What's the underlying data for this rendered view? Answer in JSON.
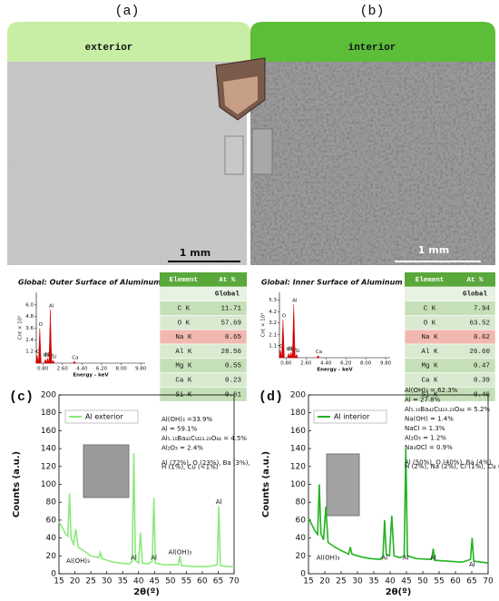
{
  "panels": [
    {
      "label": "(a)",
      "header": "exterior",
      "scale_bar": "1 mm"
    },
    {
      "label": "(b)",
      "header": "interior",
      "scale_bar": "1 mm"
    }
  ],
  "eds": [
    {
      "title": "Global: Outer Surface of Aluminum",
      "ylabel": "Cnt × 10³",
      "xlabel": "Energy - keV",
      "xlim": [
        0.2,
        10.2
      ],
      "ylim": [
        0,
        7.3
      ],
      "xticks": [
        {
          "value": 0.8,
          "label": "0.80"
        },
        {
          "value": 2.6,
          "label": "2.60"
        },
        {
          "value": 4.4,
          "label": "4.40"
        },
        {
          "value": 6.2,
          "label": "6.20"
        },
        {
          "value": 8.0,
          "label": "8.00"
        },
        {
          "value": 9.8,
          "label": "9.80"
        }
      ],
      "yticks": [
        {
          "value": 1.2,
          "label": "1.2"
        },
        {
          "value": 2.4,
          "label": "2.4"
        },
        {
          "value": 3.6,
          "label": "3.6"
        },
        {
          "value": 4.8,
          "label": "4.8"
        },
        {
          "value": 6.0,
          "label": "6.0"
        }
      ],
      "peaks": [
        {
          "label": "C",
          "x": 0.28,
          "value": 0.8
        },
        {
          "label": "O",
          "x": 0.52,
          "value": 3.6
        },
        {
          "label": "Na",
          "x": 1.04,
          "value": 0.4
        },
        {
          "label": "Mg",
          "x": 1.25,
          "value": 0.5
        },
        {
          "label": "Al",
          "x": 1.49,
          "value": 5.5
        },
        {
          "label": "Si",
          "x": 1.74,
          "value": 0.3
        },
        {
          "label": "Ca",
          "x": 3.69,
          "value": 0.2
        }
      ],
      "table": {
        "header": [
          "Element",
          "At %"
        ],
        "subheader": "Global",
        "rows": [
          [
            "C K",
            "11.71"
          ],
          [
            "O K",
            "57.69"
          ],
          [
            "Na K",
            "0.65"
          ],
          [
            "Al K",
            "28.56"
          ],
          [
            "Mg K",
            "0.55"
          ],
          [
            "Ca K",
            "0.23"
          ],
          [
            "Si K",
            "0.61"
          ]
        ]
      }
    },
    {
      "title": "Global: Inner Surface of Aluminum",
      "ylabel": "Cnt × 10³",
      "xlabel": "Energy - keV",
      "xlim": [
        0.2,
        10.2
      ],
      "ylim": [
        0,
        6.0
      ],
      "xticks": [
        {
          "value": 0.8,
          "label": "0.80"
        },
        {
          "value": 2.6,
          "label": "2.60"
        },
        {
          "value": 4.4,
          "label": "4.40"
        },
        {
          "value": 6.2,
          "label": "6.20"
        },
        {
          "value": 8.0,
          "label": "8.00"
        },
        {
          "value": 9.8,
          "label": "9.80"
        }
      ],
      "yticks": [
        {
          "value": 1.1,
          "label": "1.1"
        },
        {
          "value": 2.1,
          "label": "2.1"
        },
        {
          "value": 3.2,
          "label": "3.2"
        },
        {
          "value": 4.2,
          "label": "4.2"
        },
        {
          "value": 5.3,
          "label": "5.3"
        }
      ],
      "peaks": [
        {
          "label": "C",
          "x": 0.28,
          "value": 0.7
        },
        {
          "label": "O",
          "x": 0.52,
          "value": 3.5
        },
        {
          "label": "Na",
          "x": 1.04,
          "value": 0.4
        },
        {
          "label": "Mg",
          "x": 1.25,
          "value": 0.5
        },
        {
          "label": "Al",
          "x": 1.49,
          "value": 4.9
        },
        {
          "label": "Si",
          "x": 1.74,
          "value": 0.3
        },
        {
          "label": "Ca",
          "x": 3.69,
          "value": 0.2
        }
      ],
      "table": {
        "header": [
          "Element",
          "At %"
        ],
        "subheader": "Global",
        "rows": [
          [
            "C K",
            "7.94"
          ],
          [
            "O K",
            "63.52"
          ],
          [
            "Na K",
            "0.62"
          ],
          [
            "Al K",
            "26.60"
          ],
          [
            "Mg K",
            "0.47"
          ],
          [
            "Ca K",
            "0.39"
          ],
          [
            "Si K",
            "0.46"
          ]
        ]
      }
    }
  ],
  "chart_data": [
    {
      "type": "line",
      "label": "(c)",
      "xlabel": "2θ(º)",
      "ylabel": "Counts (a.u.)",
      "xlim": [
        15,
        70
      ],
      "ylim": [
        0,
        200
      ],
      "xticks": [
        15,
        20,
        25,
        30,
        35,
        40,
        45,
        50,
        55,
        60,
        65,
        70
      ],
      "yticks": [
        0,
        20,
        40,
        60,
        80,
        100,
        120,
        140,
        160,
        180,
        200
      ],
      "x": [
        15,
        16,
        17,
        17.8,
        18.3,
        18.8,
        19.6,
        20.3,
        21,
        23,
        25,
        27.5,
        28,
        28.5,
        31,
        34,
        37,
        38,
        38.5,
        39,
        40,
        40.6,
        41.2,
        43,
        44.3,
        44.8,
        45.3,
        48,
        52.5,
        53,
        53.5,
        58,
        62,
        64.7,
        65.2,
        65.7,
        68,
        70
      ],
      "series": [
        {
          "name": "Al exterior",
          "color": "#8cea7c",
          "values": [
            58,
            52,
            45,
            42,
            90,
            40,
            33,
            50,
            30,
            25,
            20,
            18,
            24,
            17,
            14,
            12,
            11,
            14,
            135,
            15,
            12,
            46,
            12,
            11,
            14,
            85,
            12,
            10,
            10,
            20,
            9,
            8,
            8,
            10,
            75,
            9,
            8,
            8
          ]
        }
      ],
      "annotations": [
        "Al(OH)₃ =33.9%",
        "Al = 59.1%",
        "Al₅.₁₀Ba₄₂Cu₂₃.₂₃O₈₄ = 4.5%",
        "Al₂O₃ = 2.4%",
        "Al (72%), O (23%), Ba (3%),",
        "H (1%), Cu (<1%)"
      ],
      "peak_labels": [
        {
          "text": "Al(OH)₃",
          "x": 21,
          "y": 14
        },
        {
          "text": "Al",
          "x": 38.5,
          "y": 18
        },
        {
          "text": "Al",
          "x": 44.8,
          "y": 18
        },
        {
          "text": "Al(OH)₃",
          "x": 53,
          "y": 24
        },
        {
          "text": "Al",
          "x": 65.2,
          "y": 80
        }
      ]
    },
    {
      "type": "line",
      "label": "(d)",
      "xlabel": "2θ(º)",
      "ylabel": "Counts (a.u.)",
      "xlim": [
        15,
        70
      ],
      "ylim": [
        0,
        200
      ],
      "xticks": [
        15,
        20,
        25,
        30,
        35,
        40,
        45,
        50,
        55,
        60,
        65,
        70
      ],
      "yticks": [
        0,
        20,
        40,
        60,
        80,
        100,
        120,
        140,
        160,
        180,
        200
      ],
      "x": [
        15,
        16,
        17,
        17.8,
        18.3,
        18.8,
        19.6,
        20.3,
        21,
        23,
        25,
        27.3,
        27.8,
        28.3,
        31,
        34,
        37,
        37.8,
        38.3,
        38.8,
        39.8,
        40.5,
        41.2,
        43,
        44.3,
        44.8,
        45.3,
        48,
        52.7,
        53.2,
        53.7,
        58,
        62,
        64.6,
        65.1,
        65.6,
        68,
        70
      ],
      "series": [
        {
          "name": "Al interior",
          "color": "#22b31e",
          "values": [
            62,
            55,
            48,
            44,
            100,
            45,
            38,
            75,
            35,
            30,
            26,
            22,
            30,
            22,
            19,
            17,
            16,
            20,
            60,
            22,
            20,
            65,
            20,
            18,
            20,
            140,
            20,
            17,
            16,
            28,
            15,
            14,
            13,
            16,
            40,
            14,
            13,
            12
          ]
        }
      ],
      "annotations": [
        "Al(OH)₃ = 62.3%",
        "Al = 27.8%",
        "Al₅.₁₀Ba₄₂Cu₂₃.₂₃O₈₄ = 5.2%",
        "Na(OH) = 1.4%",
        "NaCl = 1.3%",
        "Al₂O₃ = 1.2%",
        "Na₃OCl = 0.9%",
        "Al (50%), O (40%), Ba (4%),",
        "H (2%), Na (2%), Cl (1%), Cu (<1%)"
      ],
      "peak_labels": [
        {
          "text": "Al(OH)₃",
          "x": 21,
          "y": 18
        },
        {
          "text": "Al",
          "x": 38.3,
          "y": 18
        },
        {
          "text": "Al",
          "x": 44.8,
          "y": 18
        },
        {
          "text": "Al",
          "x": 53.2,
          "y": 18
        },
        {
          "text": "Al",
          "x": 65.1,
          "y": 10
        }
      ]
    }
  ]
}
